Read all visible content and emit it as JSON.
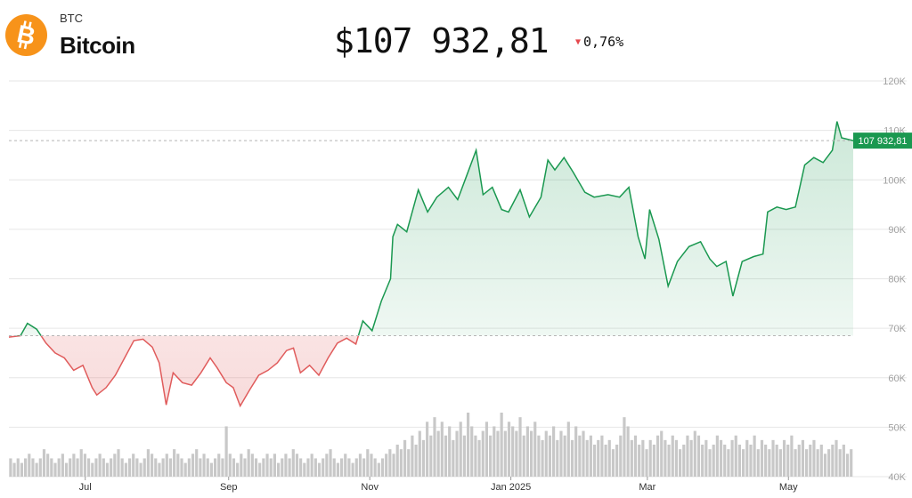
{
  "asset": {
    "ticker": "BTC",
    "name": "Bitcoin",
    "price": "$107 932,81",
    "change": "0,76%",
    "change_direction": "down",
    "logo_icon": "bitcoin-icon",
    "down_icon": "triangle-down-icon"
  },
  "colors": {
    "up_line": "#1a9850",
    "down_line": "#e05c5c",
    "up_fill": "#1a9850",
    "down_fill": "#e05c5c",
    "price_tag": "#1a9850",
    "brand": "#f7931a"
  },
  "chart_data": {
    "type": "area",
    "baseline_value": 68500,
    "current_value": 107932.81,
    "current_label": "107 932,81",
    "ylim": [
      40000,
      120000
    ],
    "yticks": [
      {
        "value": 120000,
        "label": "120K"
      },
      {
        "value": 110000,
        "label": "110K"
      },
      {
        "value": 100000,
        "label": "100K"
      },
      {
        "value": 90000,
        "label": "90K"
      },
      {
        "value": 80000,
        "label": "80K"
      },
      {
        "value": 70000,
        "label": "70K"
      },
      {
        "value": 60000,
        "label": "60K"
      },
      {
        "value": 50000,
        "label": "50K"
      },
      {
        "value": 40000,
        "label": "40K"
      }
    ],
    "xticks": [
      {
        "date": "2024-07-01",
        "label": "Jul"
      },
      {
        "date": "2024-09-01",
        "label": "Sep"
      },
      {
        "date": "2024-11-01",
        "label": "Nov"
      },
      {
        "date": "2025-01-01",
        "label": "Jan 2025"
      },
      {
        "date": "2025-03-01",
        "label": "Mar"
      },
      {
        "date": "2025-05-01",
        "label": "May"
      }
    ],
    "xlim": [
      "2024-05-29",
      "2025-05-29"
    ],
    "series": [
      {
        "points": [
          [
            "2024-05-29",
            68200
          ],
          [
            "2024-06-03",
            68500
          ],
          [
            "2024-06-06",
            71000
          ],
          [
            "2024-06-10",
            69800
          ],
          [
            "2024-06-14",
            67000
          ],
          [
            "2024-06-18",
            65000
          ],
          [
            "2024-06-22",
            64000
          ],
          [
            "2024-06-26",
            61500
          ],
          [
            "2024-06-30",
            62500
          ],
          [
            "2024-07-04",
            58000
          ],
          [
            "2024-07-06",
            56500
          ],
          [
            "2024-07-10",
            58000
          ],
          [
            "2024-07-14",
            60500
          ],
          [
            "2024-07-18",
            64000
          ],
          [
            "2024-07-22",
            67500
          ],
          [
            "2024-07-26",
            67800
          ],
          [
            "2024-07-30",
            66200
          ],
          [
            "2024-08-02",
            63000
          ],
          [
            "2024-08-05",
            54500
          ],
          [
            "2024-08-08",
            61000
          ],
          [
            "2024-08-12",
            59000
          ],
          [
            "2024-08-16",
            58500
          ],
          [
            "2024-08-20",
            61000
          ],
          [
            "2024-08-24",
            64000
          ],
          [
            "2024-08-27",
            62000
          ],
          [
            "2024-08-31",
            59000
          ],
          [
            "2024-09-03",
            58000
          ],
          [
            "2024-09-06",
            54300
          ],
          [
            "2024-09-10",
            57500
          ],
          [
            "2024-09-14",
            60500
          ],
          [
            "2024-09-18",
            61500
          ],
          [
            "2024-09-22",
            63000
          ],
          [
            "2024-09-26",
            65500
          ],
          [
            "2024-09-29",
            66000
          ],
          [
            "2024-10-02",
            61000
          ],
          [
            "2024-10-06",
            62500
          ],
          [
            "2024-10-10",
            60500
          ],
          [
            "2024-10-14",
            64000
          ],
          [
            "2024-10-18",
            67000
          ],
          [
            "2024-10-22",
            68000
          ],
          [
            "2024-10-26",
            66800
          ],
          [
            "2024-10-29",
            71500
          ],
          [
            "2024-11-02",
            69500
          ],
          [
            "2024-11-06",
            75500
          ],
          [
            "2024-11-10",
            80000
          ],
          [
            "2024-11-11",
            88500
          ],
          [
            "2024-11-13",
            91000
          ],
          [
            "2024-11-17",
            89500
          ],
          [
            "2024-11-22",
            98000
          ],
          [
            "2024-11-26",
            93500
          ],
          [
            "2024-11-30",
            96500
          ],
          [
            "2024-12-05",
            98500
          ],
          [
            "2024-12-09",
            96000
          ],
          [
            "2024-12-13",
            101000
          ],
          [
            "2024-12-17",
            106000
          ],
          [
            "2024-12-20",
            97000
          ],
          [
            "2024-12-24",
            98500
          ],
          [
            "2024-12-28",
            94000
          ],
          [
            "2024-12-31",
            93500
          ],
          [
            "2025-01-05",
            98000
          ],
          [
            "2025-01-09",
            92500
          ],
          [
            "2025-01-14",
            96500
          ],
          [
            "2025-01-17",
            104000
          ],
          [
            "2025-01-20",
            102000
          ],
          [
            "2025-01-24",
            104500
          ],
          [
            "2025-01-28",
            101500
          ],
          [
            "2025-02-02",
            97500
          ],
          [
            "2025-02-06",
            96500
          ],
          [
            "2025-02-12",
            97000
          ],
          [
            "2025-02-17",
            96500
          ],
          [
            "2025-02-21",
            98500
          ],
          [
            "2025-02-25",
            88500
          ],
          [
            "2025-02-28",
            84000
          ],
          [
            "2025-03-02",
            94000
          ],
          [
            "2025-03-06",
            88000
          ],
          [
            "2025-03-10",
            78500
          ],
          [
            "2025-03-14",
            83500
          ],
          [
            "2025-03-19",
            86500
          ],
          [
            "2025-03-24",
            87500
          ],
          [
            "2025-03-28",
            84000
          ],
          [
            "2025-03-31",
            82500
          ],
          [
            "2025-04-04",
            83500
          ],
          [
            "2025-04-07",
            76500
          ],
          [
            "2025-04-11",
            83500
          ],
          [
            "2025-04-16",
            84500
          ],
          [
            "2025-04-20",
            85000
          ],
          [
            "2025-04-22",
            93500
          ],
          [
            "2025-04-26",
            94500
          ],
          [
            "2025-04-30",
            94000
          ],
          [
            "2025-05-04",
            94500
          ],
          [
            "2025-05-08",
            103000
          ],
          [
            "2025-05-12",
            104500
          ],
          [
            "2025-05-16",
            103500
          ],
          [
            "2025-05-20",
            106000
          ],
          [
            "2025-05-22",
            111800
          ],
          [
            "2025-05-24",
            108500
          ],
          [
            "2025-05-29",
            107932.81
          ]
        ]
      }
    ],
    "volume": [
      4,
      3,
      4,
      3,
      4,
      5,
      4,
      3,
      4,
      6,
      5,
      4,
      3,
      4,
      5,
      3,
      4,
      5,
      4,
      6,
      5,
      4,
      3,
      4,
      5,
      4,
      3,
      4,
      5,
      6,
      4,
      3,
      4,
      5,
      4,
      3,
      4,
      6,
      5,
      4,
      3,
      4,
      5,
      4,
      6,
      5,
      4,
      3,
      4,
      5,
      6,
      4,
      5,
      4,
      3,
      4,
      5,
      4,
      11,
      5,
      4,
      3,
      5,
      4,
      6,
      5,
      4,
      3,
      4,
      5,
      4,
      5,
      3,
      4,
      5,
      4,
      6,
      5,
      4,
      3,
      4,
      5,
      4,
      3,
      4,
      5,
      6,
      4,
      3,
      4,
      5,
      4,
      3,
      4,
      5,
      4,
      6,
      5,
      4,
      3,
      4,
      5,
      6,
      5,
      7,
      6,
      8,
      6,
      9,
      7,
      10,
      8,
      12,
      9,
      13,
      10,
      12,
      9,
      11,
      8,
      10,
      12,
      9,
      14,
      11,
      9,
      8,
      10,
      12,
      9,
      11,
      10,
      14,
      10,
      12,
      11,
      10,
      13,
      9,
      11,
      10,
      12,
      9,
      8,
      10,
      9,
      11,
      8,
      10,
      9,
      12,
      8,
      11,
      9,
      10,
      8,
      9,
      7,
      8,
      9,
      7,
      8,
      6,
      7,
      9,
      13,
      11,
      8,
      9,
      7,
      8,
      6,
      8,
      7,
      9,
      10,
      8,
      7,
      9,
      8,
      6,
      7,
      9,
      8,
      10,
      9,
      7,
      8,
      6,
      7,
      9,
      8,
      7,
      6,
      8,
      9,
      7,
      6,
      8,
      7,
      9,
      6,
      8,
      7,
      6,
      8,
      7,
      6,
      8,
      7,
      9,
      6,
      7,
      8,
      6,
      7,
      8,
      6,
      7,
      5,
      6,
      7,
      8,
      6,
      7,
      5,
      6
    ],
    "volume_max": 14
  }
}
